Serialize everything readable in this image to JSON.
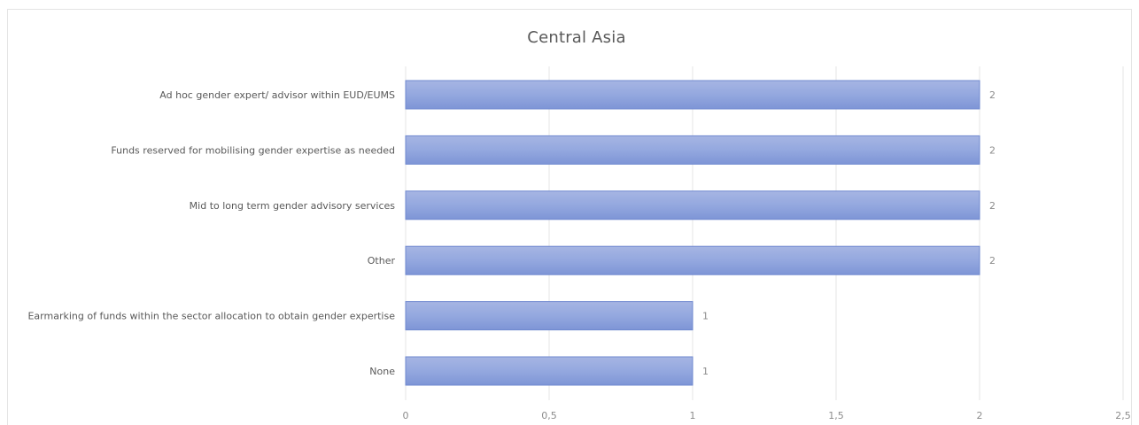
{
  "chart_data": {
    "type": "bar",
    "orientation": "horizontal",
    "title": "Central Asia",
    "categories": [
      "Ad hoc gender expert/ advisor within EUD/EUMS",
      "Funds reserved for mobilising gender expertise as needed",
      "Mid to long term gender advisory services",
      "Other",
      "Earmarking  of funds within the sector allocation to obtain gender expertise",
      "None"
    ],
    "values": [
      2,
      2,
      2,
      2,
      1,
      1
    ],
    "data_labels": [
      "2",
      "2",
      "2",
      "2",
      "1",
      "1"
    ],
    "xlim": [
      0,
      2.5
    ],
    "x_ticks": [
      0,
      0.5,
      1,
      1.5,
      2,
      2.5
    ],
    "x_tick_labels": [
      "0",
      "0,5",
      "1",
      "1,5",
      "2",
      "2,5"
    ],
    "grid": "vertical",
    "legend": "none",
    "bar_color": "#8fa3da"
  }
}
